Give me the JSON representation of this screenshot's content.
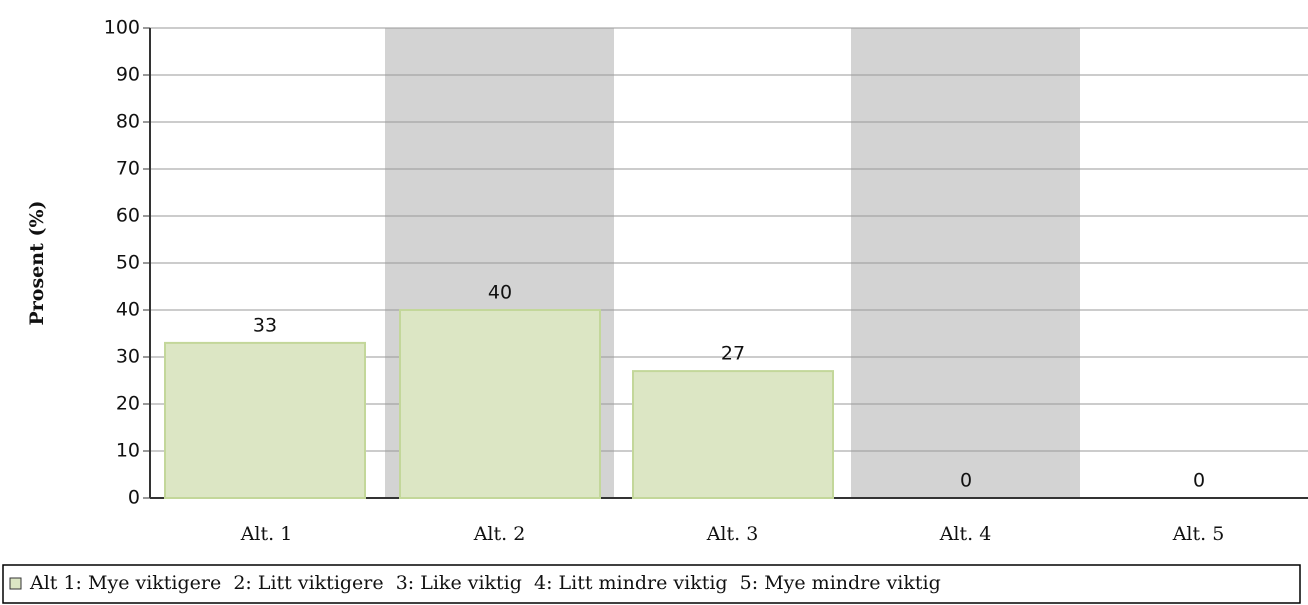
{
  "chart_data": {
    "type": "bar",
    "ylabel": "Prosent (%)",
    "categories": [
      "Alt. 1",
      "Alt. 2",
      "Alt. 3",
      "Alt. 4",
      "Alt. 5"
    ],
    "series": [
      {
        "name": "Alt 1: Mye viktigere  2: Litt viktigere  3: Like viktig  4: Litt mindre viktig  5: Mye mindre viktig",
        "color": "#dce6c4",
        "values": [
          33,
          40,
          27,
          0,
          0
        ]
      }
    ],
    "ylim": [
      0,
      100
    ],
    "yticks": [
      0,
      10,
      20,
      30,
      40,
      50,
      60,
      70,
      80,
      90,
      100
    ],
    "grid": true,
    "band_color": "#d3d3d3",
    "legend": "bottom"
  }
}
